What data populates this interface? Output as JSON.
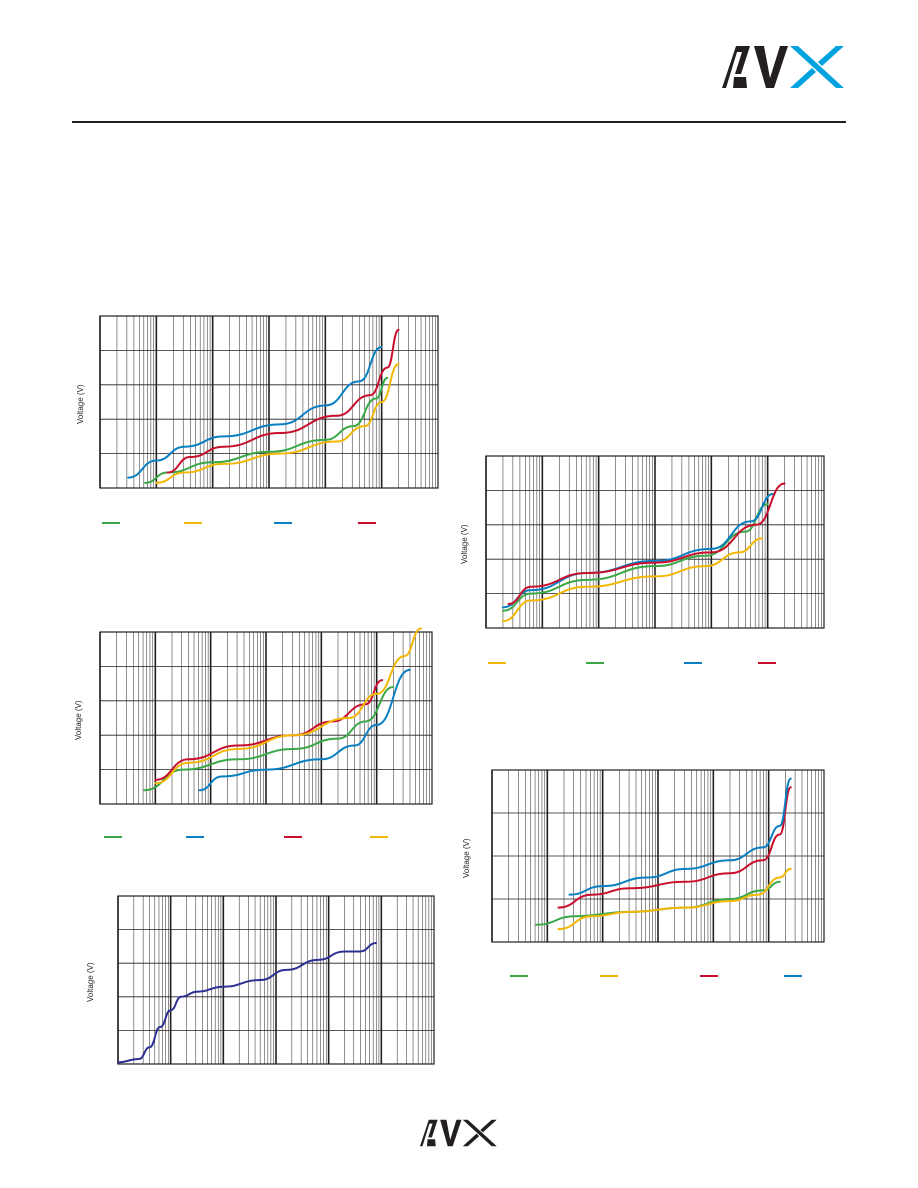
{
  "brand": {
    "logo_text": "AVX",
    "logo_color": "#231f20",
    "accent_color": "#00a3e0"
  },
  "series_colors": {
    "green": "#3aa846",
    "yellow": "#f2b705",
    "blue": "#0a7fc2",
    "red": "#c8102e",
    "navy": "#2e3192"
  },
  "chart_data": [
    {
      "id": "chart-a",
      "type": "line",
      "ylabel": "Voltage (V)",
      "xscale": "log",
      "x_decades": 6,
      "ylim": [
        0,
        5
      ],
      "legend_placement": "bottom",
      "legend_order": [
        "green",
        "yellow",
        "blue",
        "red"
      ],
      "series": [
        {
          "color": "green",
          "points": [
            [
              0.8,
              0.15
            ],
            [
              1.2,
              0.45
            ],
            [
              2.0,
              0.75
            ],
            [
              3.0,
              1.05
            ],
            [
              4.0,
              1.4
            ],
            [
              4.5,
              1.8
            ],
            [
              4.9,
              2.6
            ],
            [
              5.1,
              3.2
            ]
          ]
        },
        {
          "color": "yellow",
          "points": [
            [
              1.0,
              0.15
            ],
            [
              1.5,
              0.45
            ],
            [
              2.2,
              0.7
            ],
            [
              3.2,
              1.0
            ],
            [
              4.2,
              1.35
            ],
            [
              4.7,
              1.8
            ],
            [
              5.0,
              2.5
            ],
            [
              5.3,
              3.6
            ]
          ]
        },
        {
          "color": "blue",
          "points": [
            [
              0.5,
              0.3
            ],
            [
              1.0,
              0.8
            ],
            [
              1.5,
              1.2
            ],
            [
              2.2,
              1.5
            ],
            [
              3.2,
              1.85
            ],
            [
              4.0,
              2.4
            ],
            [
              4.6,
              3.1
            ],
            [
              5.0,
              4.1
            ]
          ]
        },
        {
          "color": "red",
          "points": [
            [
              1.2,
              0.45
            ],
            [
              1.6,
              0.9
            ],
            [
              2.2,
              1.2
            ],
            [
              3.2,
              1.6
            ],
            [
              4.2,
              2.1
            ],
            [
              4.8,
              2.7
            ],
            [
              5.1,
              3.5
            ],
            [
              5.3,
              4.6
            ]
          ]
        }
      ]
    },
    {
      "id": "chart-b",
      "type": "line",
      "ylabel": "Voltage (V)",
      "xscale": "log",
      "x_decades": 6,
      "ylim": [
        0,
        5
      ],
      "legend_placement": "bottom",
      "legend_order": [
        "yellow",
        "green",
        "blue",
        "red"
      ],
      "series": [
        {
          "color": "yellow",
          "points": [
            [
              0.3,
              0.2
            ],
            [
              0.8,
              0.8
            ],
            [
              1.8,
              1.2
            ],
            [
              3.0,
              1.5
            ],
            [
              3.9,
              1.8
            ],
            [
              4.5,
              2.2
            ],
            [
              4.9,
              2.6
            ]
          ]
        },
        {
          "color": "green",
          "points": [
            [
              0.3,
              0.5
            ],
            [
              0.8,
              1.0
            ],
            [
              1.8,
              1.4
            ],
            [
              3.0,
              1.8
            ],
            [
              3.9,
              2.1
            ],
            [
              4.6,
              2.8
            ],
            [
              5.0,
              3.6
            ]
          ]
        },
        {
          "color": "blue",
          "points": [
            [
              0.3,
              0.6
            ],
            [
              0.8,
              1.1
            ],
            [
              1.8,
              1.6
            ],
            [
              3.0,
              1.95
            ],
            [
              4.0,
              2.3
            ],
            [
              4.7,
              3.1
            ],
            [
              5.1,
              3.9
            ]
          ]
        },
        {
          "color": "red",
          "points": [
            [
              0.4,
              0.7
            ],
            [
              0.8,
              1.2
            ],
            [
              1.8,
              1.6
            ],
            [
              3.0,
              1.9
            ],
            [
              4.0,
              2.2
            ],
            [
              4.8,
              3.0
            ],
            [
              5.3,
              4.2
            ]
          ]
        }
      ]
    },
    {
      "id": "chart-c",
      "type": "line",
      "ylabel": "Voltage (V)",
      "xscale": "log",
      "x_decades": 6,
      "ylim": [
        0,
        5
      ],
      "legend_placement": "bottom",
      "legend_order": [
        "green",
        "blue",
        "red",
        "yellow"
      ],
      "series": [
        {
          "color": "green",
          "points": [
            [
              0.8,
              0.4
            ],
            [
              1.5,
              1.0
            ],
            [
              2.5,
              1.3
            ],
            [
              3.5,
              1.6
            ],
            [
              4.3,
              1.9
            ],
            [
              4.8,
              2.4
            ],
            [
              5.3,
              3.4
            ]
          ]
        },
        {
          "color": "blue",
          "points": [
            [
              1.8,
              0.4
            ],
            [
              2.2,
              0.8
            ],
            [
              3.0,
              1.0
            ],
            [
              4.0,
              1.3
            ],
            [
              4.6,
              1.7
            ],
            [
              5.0,
              2.3
            ],
            [
              5.6,
              3.9
            ]
          ]
        },
        {
          "color": "red",
          "points": [
            [
              1.0,
              0.7
            ],
            [
              1.6,
              1.3
            ],
            [
              2.5,
              1.7
            ],
            [
              3.5,
              2.0
            ],
            [
              4.2,
              2.4
            ],
            [
              4.8,
              2.9
            ],
            [
              5.1,
              3.6
            ]
          ]
        },
        {
          "color": "yellow",
          "points": [
            [
              1.0,
              0.6
            ],
            [
              1.6,
              1.2
            ],
            [
              2.5,
              1.6
            ],
            [
              3.5,
              2.0
            ],
            [
              4.5,
              2.5
            ],
            [
              5.0,
              3.2
            ],
            [
              5.5,
              4.3
            ],
            [
              5.8,
              5.1
            ]
          ]
        }
      ]
    },
    {
      "id": "chart-d",
      "type": "line",
      "ylabel": "Voltage (V)",
      "xscale": "log",
      "x_decades": 6,
      "ylim": [
        0,
        4
      ],
      "legend_placement": "bottom",
      "legend_order": [
        "green",
        "yellow",
        "red",
        "blue"
      ],
      "series": [
        {
          "color": "green",
          "points": [
            [
              0.8,
              0.4
            ],
            [
              1.5,
              0.6
            ],
            [
              2.5,
              0.7
            ],
            [
              3.5,
              0.8
            ],
            [
              4.3,
              1.0
            ],
            [
              4.9,
              1.2
            ],
            [
              5.2,
              1.4
            ]
          ]
        },
        {
          "color": "yellow",
          "points": [
            [
              1.2,
              0.3
            ],
            [
              1.8,
              0.6
            ],
            [
              2.5,
              0.7
            ],
            [
              3.5,
              0.8
            ],
            [
              4.3,
              0.95
            ],
            [
              4.8,
              1.1
            ],
            [
              5.2,
              1.5
            ],
            [
              5.4,
              1.7
            ]
          ]
        },
        {
          "color": "red",
          "points": [
            [
              1.2,
              0.8
            ],
            [
              1.8,
              1.1
            ],
            [
              2.5,
              1.25
            ],
            [
              3.5,
              1.4
            ],
            [
              4.3,
              1.6
            ],
            [
              4.9,
              1.9
            ],
            [
              5.2,
              2.5
            ],
            [
              5.4,
              3.6
            ]
          ]
        },
        {
          "color": "blue",
          "points": [
            [
              1.4,
              1.1
            ],
            [
              2.0,
              1.3
            ],
            [
              2.8,
              1.5
            ],
            [
              3.5,
              1.7
            ],
            [
              4.3,
              1.9
            ],
            [
              4.9,
              2.2
            ],
            [
              5.2,
              2.7
            ],
            [
              5.4,
              3.8
            ]
          ]
        }
      ]
    },
    {
      "id": "chart-e",
      "type": "line",
      "ylabel": "Voltage (V)",
      "xscale": "log",
      "x_decades": 6,
      "ylim": [
        0,
        5
      ],
      "legend_placement": "none",
      "legend_order": [],
      "series": [
        {
          "color": "navy",
          "points": [
            [
              0.0,
              0.05
            ],
            [
              0.4,
              0.15
            ],
            [
              0.6,
              0.5
            ],
            [
              0.8,
              1.1
            ],
            [
              1.0,
              1.6
            ],
            [
              1.2,
              2.0
            ],
            [
              1.5,
              2.15
            ],
            [
              2.0,
              2.3
            ],
            [
              2.7,
              2.5
            ],
            [
              3.2,
              2.8
            ],
            [
              3.8,
              3.1
            ],
            [
              4.3,
              3.35
            ],
            [
              4.6,
              3.35
            ],
            [
              4.9,
              3.6
            ]
          ]
        }
      ]
    }
  ]
}
